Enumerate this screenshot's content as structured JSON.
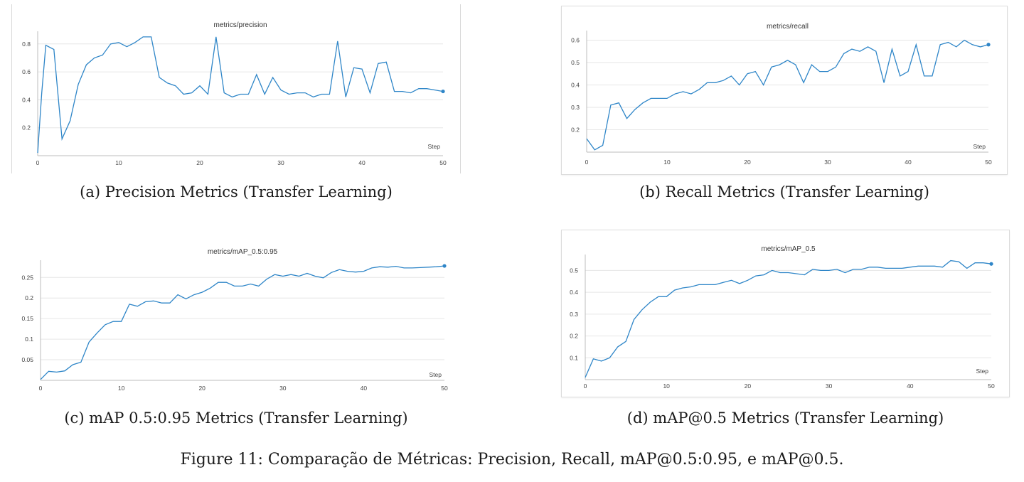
{
  "chart_data": [
    {
      "id": "a",
      "type": "line",
      "title": "metrics/precision",
      "xlabel": "Step",
      "ylabel": "",
      "xlim": [
        0,
        50
      ],
      "ylim": [
        0,
        0.87
      ],
      "xticks": [
        0,
        10,
        20,
        30,
        40,
        50
      ],
      "yticks": [
        0.2,
        0.4,
        0.6,
        0.8
      ],
      "ytick_labels": [
        "0.2",
        "0.4",
        "0.6",
        "0.8"
      ],
      "grid": true,
      "series": [
        {
          "x": [
            0,
            0.5,
            1,
            2,
            3,
            4,
            5,
            6,
            7,
            8,
            9,
            10,
            11,
            12,
            13,
            14,
            15,
            16,
            17,
            18,
            19,
            20,
            21,
            22,
            23,
            24,
            25,
            26,
            27,
            28,
            29,
            30,
            31,
            32,
            33,
            34,
            35,
            36,
            37,
            38,
            39,
            40,
            41,
            42,
            43,
            44,
            45,
            46,
            47,
            48,
            49,
            50
          ],
          "y": [
            0.02,
            0.45,
            0.79,
            0.76,
            0.12,
            0.25,
            0.51,
            0.65,
            0.7,
            0.72,
            0.8,
            0.81,
            0.78,
            0.81,
            0.85,
            0.85,
            0.56,
            0.52,
            0.5,
            0.44,
            0.45,
            0.5,
            0.44,
            0.85,
            0.45,
            0.42,
            0.44,
            0.44,
            0.58,
            0.44,
            0.56,
            0.47,
            0.44,
            0.45,
            0.45,
            0.42,
            0.44,
            0.44,
            0.82,
            0.42,
            0.63,
            0.62,
            0.45,
            0.66,
            0.67,
            0.46,
            0.46,
            0.45,
            0.48,
            0.48,
            0.47,
            0.46
          ]
        }
      ]
    },
    {
      "id": "b",
      "type": "line",
      "title": "metrics/recall",
      "xlabel": "Step",
      "ylabel": "",
      "xlim": [
        0,
        50
      ],
      "ylim": [
        0.1,
        0.63
      ],
      "xticks": [
        0,
        10,
        20,
        30,
        40,
        50
      ],
      "yticks": [
        0.2,
        0.3,
        0.4,
        0.5,
        0.6
      ],
      "ytick_labels": [
        "0.2",
        "0.3",
        "0.4",
        "0.5",
        "0.6"
      ],
      "grid": true,
      "series": [
        {
          "x": [
            0,
            1,
            2,
            3,
            4,
            5,
            6,
            7,
            8,
            9,
            10,
            11,
            12,
            13,
            14,
            15,
            16,
            17,
            18,
            19,
            20,
            21,
            22,
            23,
            24,
            25,
            26,
            27,
            28,
            29,
            30,
            31,
            32,
            33,
            34,
            35,
            36,
            37,
            38,
            39,
            40,
            41,
            42,
            43,
            44,
            45,
            46,
            47,
            48,
            49,
            50
          ],
          "y": [
            0.16,
            0.11,
            0.13,
            0.31,
            0.32,
            0.25,
            0.29,
            0.32,
            0.34,
            0.34,
            0.34,
            0.36,
            0.37,
            0.36,
            0.38,
            0.41,
            0.41,
            0.42,
            0.44,
            0.4,
            0.45,
            0.46,
            0.4,
            0.48,
            0.49,
            0.51,
            0.49,
            0.41,
            0.49,
            0.46,
            0.46,
            0.48,
            0.54,
            0.56,
            0.55,
            0.57,
            0.55,
            0.41,
            0.56,
            0.44,
            0.46,
            0.58,
            0.44,
            0.44,
            0.58,
            0.59,
            0.57,
            0.6,
            0.58,
            0.57,
            0.58
          ]
        }
      ]
    },
    {
      "id": "c",
      "type": "line",
      "title": "metrics/mAP_0.5:0.95",
      "xlabel": "Step",
      "ylabel": "",
      "xlim": [
        0,
        50
      ],
      "ylim": [
        0,
        0.285
      ],
      "xticks": [
        0,
        10,
        20,
        30,
        40,
        50
      ],
      "yticks": [
        0.05,
        0.1,
        0.15,
        0.2,
        0.25
      ],
      "ytick_labels": [
        "0.05",
        "0.1",
        "0.15",
        "0.2",
        "0.25"
      ],
      "grid": true,
      "series": [
        {
          "x": [
            0,
            1,
            2,
            3,
            4,
            5,
            6,
            7,
            8,
            9,
            10,
            11,
            12,
            13,
            14,
            15,
            16,
            17,
            18,
            19,
            20,
            21,
            22,
            23,
            24,
            25,
            26,
            27,
            28,
            29,
            30,
            31,
            32,
            33,
            34,
            35,
            36,
            37,
            38,
            39,
            40,
            41,
            42,
            43,
            44,
            45,
            46,
            47,
            48,
            49,
            50
          ],
          "y": [
            0.002,
            0.022,
            0.02,
            0.023,
            0.038,
            0.044,
            0.093,
            0.115,
            0.135,
            0.143,
            0.143,
            0.185,
            0.18,
            0.191,
            0.193,
            0.188,
            0.188,
            0.208,
            0.198,
            0.208,
            0.214,
            0.224,
            0.238,
            0.238,
            0.229,
            0.229,
            0.234,
            0.229,
            0.246,
            0.257,
            0.253,
            0.257,
            0.253,
            0.26,
            0.253,
            0.249,
            0.262,
            0.269,
            0.265,
            0.263,
            0.265,
            0.273,
            0.276,
            0.275,
            0.277,
            0.273,
            0.273,
            0.274,
            0.275,
            0.276,
            0.278
          ]
        }
      ]
    },
    {
      "id": "d",
      "type": "line",
      "title": "metrics/mAP_0.5",
      "xlabel": "Step",
      "ylabel": "",
      "xlim": [
        0,
        50
      ],
      "ylim": [
        0,
        0.56
      ],
      "xticks": [
        0,
        10,
        20,
        30,
        40,
        50
      ],
      "yticks": [
        0.1,
        0.2,
        0.3,
        0.4,
        0.5
      ],
      "ytick_labels": [
        "0.1",
        "0.2",
        "0.3",
        "0.4",
        "0.5"
      ],
      "grid": true,
      "series": [
        {
          "x": [
            0,
            1,
            2,
            3,
            4,
            5,
            6,
            7,
            8,
            9,
            10,
            11,
            12,
            13,
            14,
            15,
            16,
            17,
            18,
            19,
            20,
            21,
            22,
            23,
            24,
            25,
            26,
            27,
            28,
            29,
            30,
            31,
            32,
            33,
            34,
            35,
            36,
            37,
            38,
            39,
            40,
            41,
            42,
            43,
            44,
            45,
            46,
            47,
            48,
            49,
            50
          ],
          "y": [
            0.01,
            0.095,
            0.085,
            0.1,
            0.15,
            0.175,
            0.275,
            0.32,
            0.355,
            0.38,
            0.38,
            0.41,
            0.42,
            0.425,
            0.435,
            0.435,
            0.435,
            0.445,
            0.455,
            0.44,
            0.455,
            0.475,
            0.48,
            0.5,
            0.49,
            0.49,
            0.485,
            0.48,
            0.505,
            0.5,
            0.5,
            0.505,
            0.49,
            0.505,
            0.505,
            0.515,
            0.515,
            0.51,
            0.51,
            0.51,
            0.515,
            0.52,
            0.52,
            0.52,
            0.515,
            0.545,
            0.54,
            0.51,
            0.535,
            0.535,
            0.53
          ]
        }
      ]
    }
  ],
  "captions": {
    "a": "(a) Precision Metrics (Transfer Learning)",
    "b": "(b) Recall Metrics (Transfer Learning)",
    "c": "(c) mAP 0.5:0.95 Metrics (Transfer Learning)",
    "d": "(d) mAP@0.5 Metrics (Transfer Learning)",
    "figure": "Figure 11: Comparação de Métricas: Precision, Recall, mAP@0.5:0.95, e mAP@0.5."
  },
  "colors": {
    "series": "#2f86c8",
    "grid": "#e6e6e6",
    "axis": "#bdbdbd"
  }
}
